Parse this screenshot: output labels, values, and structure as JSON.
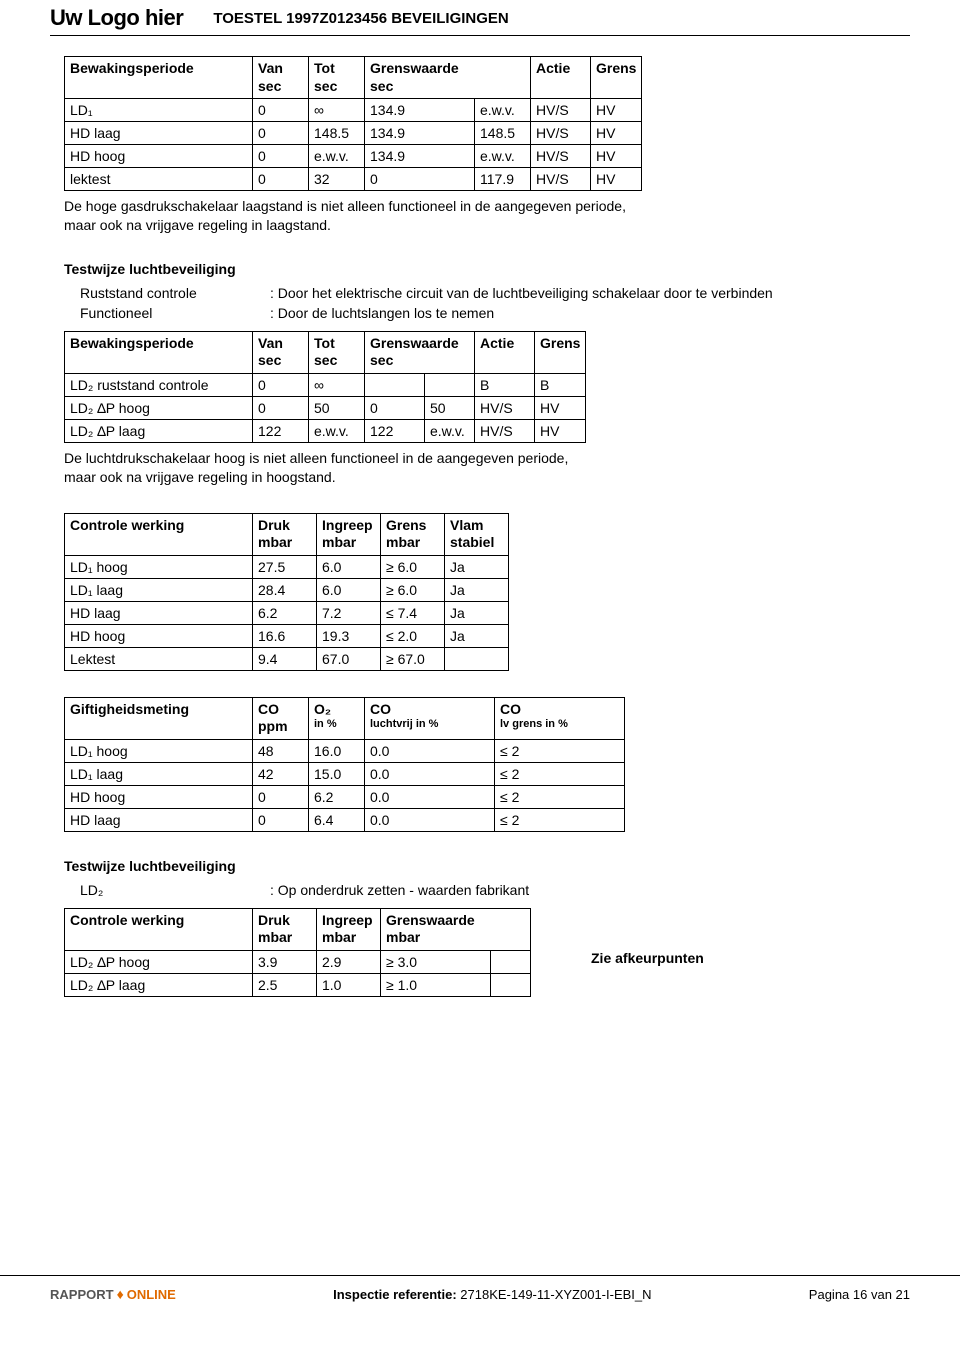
{
  "header": {
    "logo": "Uw Logo hier",
    "title": "TOESTEL 1997Z0123456 BEVEILIGINGEN"
  },
  "table1": {
    "cols": [
      "Bewakingsperiode",
      "Van\nsec",
      "Tot\nsec",
      "Grenswaarde\nsec",
      "Actie",
      "Grens"
    ],
    "rows": [
      [
        "LD₁",
        "0",
        "∞",
        "134.9",
        "e.w.v.",
        "HV/S",
        "HV"
      ],
      [
        "HD laag",
        "0",
        "148.5",
        "134.9",
        "148.5",
        "HV/S",
        "HV"
      ],
      [
        "HD hoog",
        "0",
        "e.w.v.",
        "134.9",
        "e.w.v.",
        "HV/S",
        "HV"
      ],
      [
        "lektest",
        "0",
        "32",
        "0",
        "117.9",
        "HV/S",
        "HV"
      ]
    ],
    "note": "De hoge gasdrukschakelaar laagstand is niet alleen functioneel in de aangegeven periode,\nmaar ook na vrijgave regeling in laagstand."
  },
  "section2": {
    "heading": "Testwijze luchtbeveiliging",
    "line1_label": "Ruststand controle",
    "line1_val": ": Door het elektrische circuit van de luchtbeveiliging schakelaar door te verbinden",
    "line2_label": "Functioneel",
    "line2_val": ": Door de luchtslangen los te nemen"
  },
  "table2": {
    "cols": [
      "Bewakingsperiode",
      "Van\nsec",
      "Tot\nsec",
      "Grenswaarde\nsec",
      "Actie",
      "Grens"
    ],
    "rows": [
      [
        "LD₂ ruststand controle",
        "0",
        "∞",
        "",
        "",
        "B",
        "B"
      ],
      [
        "LD₂ ∆P hoog",
        "0",
        "50",
        "0",
        "50",
        "HV/S",
        "HV"
      ],
      [
        "LD₂ ∆P laag",
        "122",
        "e.w.v.",
        "122",
        "e.w.v.",
        "HV/S",
        "HV"
      ]
    ],
    "note": "De luchtdrukschakelaar hoog is niet alleen functioneel in de aangegeven periode,\nmaar ook na vrijgave regeling in hoogstand."
  },
  "table3": {
    "cols": [
      "Controle werking",
      "Druk\nmbar",
      "Ingreep\nmbar",
      "Grens\nmbar",
      "Vlam\nstabiel"
    ],
    "rows": [
      [
        "LD₁ hoog",
        "27.5",
        "6.0",
        "≥ 6.0",
        "Ja"
      ],
      [
        "LD₁ laag",
        "28.4",
        "6.0",
        "≥ 6.0",
        "Ja"
      ],
      [
        "HD laag",
        "6.2",
        "7.2",
        "≤ 7.4",
        "Ja"
      ],
      [
        "HD hoog",
        "16.6",
        "19.3",
        "≤ 2.0",
        "Ja"
      ],
      [
        "Lektest",
        "9.4",
        "67.0",
        "≥ 67.0",
        ""
      ]
    ]
  },
  "table4": {
    "cols": [
      "Giftigheidsmeting",
      "CO\nppm",
      "O₂\nin %",
      "CO\nluchtvrij in %",
      "CO\nlv grens in %"
    ],
    "rows": [
      [
        "LD₁ hoog",
        "48",
        "16.0",
        "0.0",
        "≤ 2"
      ],
      [
        "LD₁ laag",
        "42",
        "15.0",
        "0.0",
        "≤ 2"
      ],
      [
        "HD hoog",
        "0",
        "6.2",
        "0.0",
        "≤ 2"
      ],
      [
        "HD laag",
        "0",
        "6.4",
        "0.0",
        "≤ 2"
      ]
    ]
  },
  "section5": {
    "heading": "Testwijze luchtbeveiliging",
    "line1_label": "LD₂",
    "line1_val": ": Op onderdruk zetten - waarden fabrikant"
  },
  "table6": {
    "cols": [
      "Controle werking",
      "Druk\nmbar",
      "Ingreep\nmbar",
      "Grenswaarde\nmbar"
    ],
    "rows": [
      [
        "LD₂ ∆P hoog",
        "3.9",
        "2.9",
        "≥ 3.0",
        ""
      ],
      [
        "LD₂ ∆P laag",
        "2.5",
        "1.0",
        "≥ 1.0",
        ""
      ]
    ],
    "side_note": "Zie afkeurpunten"
  },
  "footer": {
    "logo1": "RAPPORT",
    "logo2": "ONLINE",
    "center_label": "Inspectie referentie:",
    "center_val": " 2718KE-149-11-XYZ001-I-EBI_N",
    "right": "Pagina 16 van 21"
  },
  "widths": {
    "t1": [
      188,
      56,
      56,
      110,
      56,
      60,
      46
    ],
    "t2": [
      188,
      56,
      56,
      60,
      50,
      60,
      46
    ],
    "t3": [
      188,
      64,
      64,
      64,
      64
    ],
    "t4": [
      188,
      56,
      56,
      130,
      130
    ],
    "t6": [
      188,
      64,
      64,
      110,
      40
    ]
  }
}
